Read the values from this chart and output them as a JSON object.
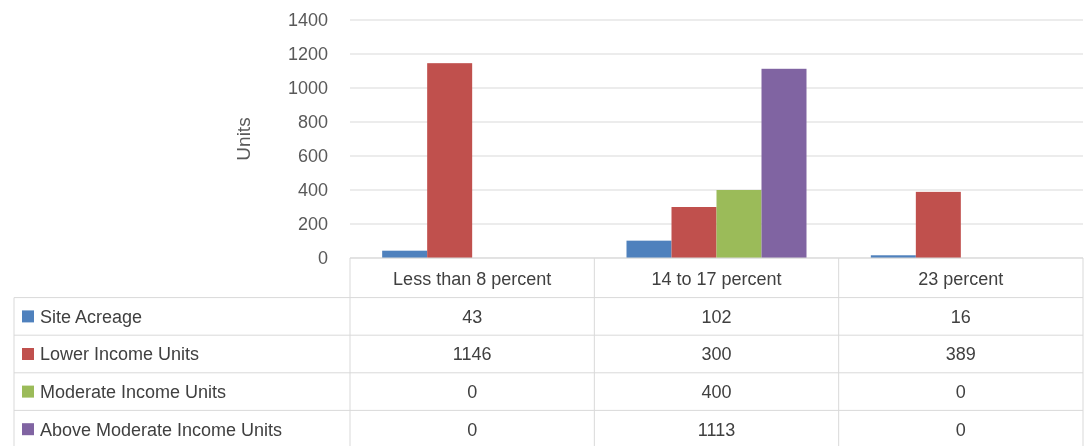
{
  "chart_data": {
    "type": "bar",
    "ylabel": "Units",
    "categories": [
      "Less than 8 percent",
      "14 to 17 percent",
      "23 percent"
    ],
    "series": [
      {
        "name": "Site Acreage",
        "color": "#4f81bd",
        "values": [
          43,
          102,
          16
        ]
      },
      {
        "name": "Lower Income Units",
        "color": "#c0504d",
        "values": [
          1146,
          300,
          389
        ]
      },
      {
        "name": "Moderate Income Units",
        "color": "#9bbb59",
        "values": [
          0,
          400,
          0
        ]
      },
      {
        "name": "Above Moderate Income Units",
        "color": "#8064a2",
        "values": [
          0,
          1113,
          0
        ]
      }
    ],
    "ylim": [
      0,
      1400
    ],
    "yticks": [
      0,
      200,
      400,
      600,
      800,
      1000,
      1200,
      1400
    ],
    "grid": "y",
    "data_labels": true,
    "legend": "bottom"
  }
}
